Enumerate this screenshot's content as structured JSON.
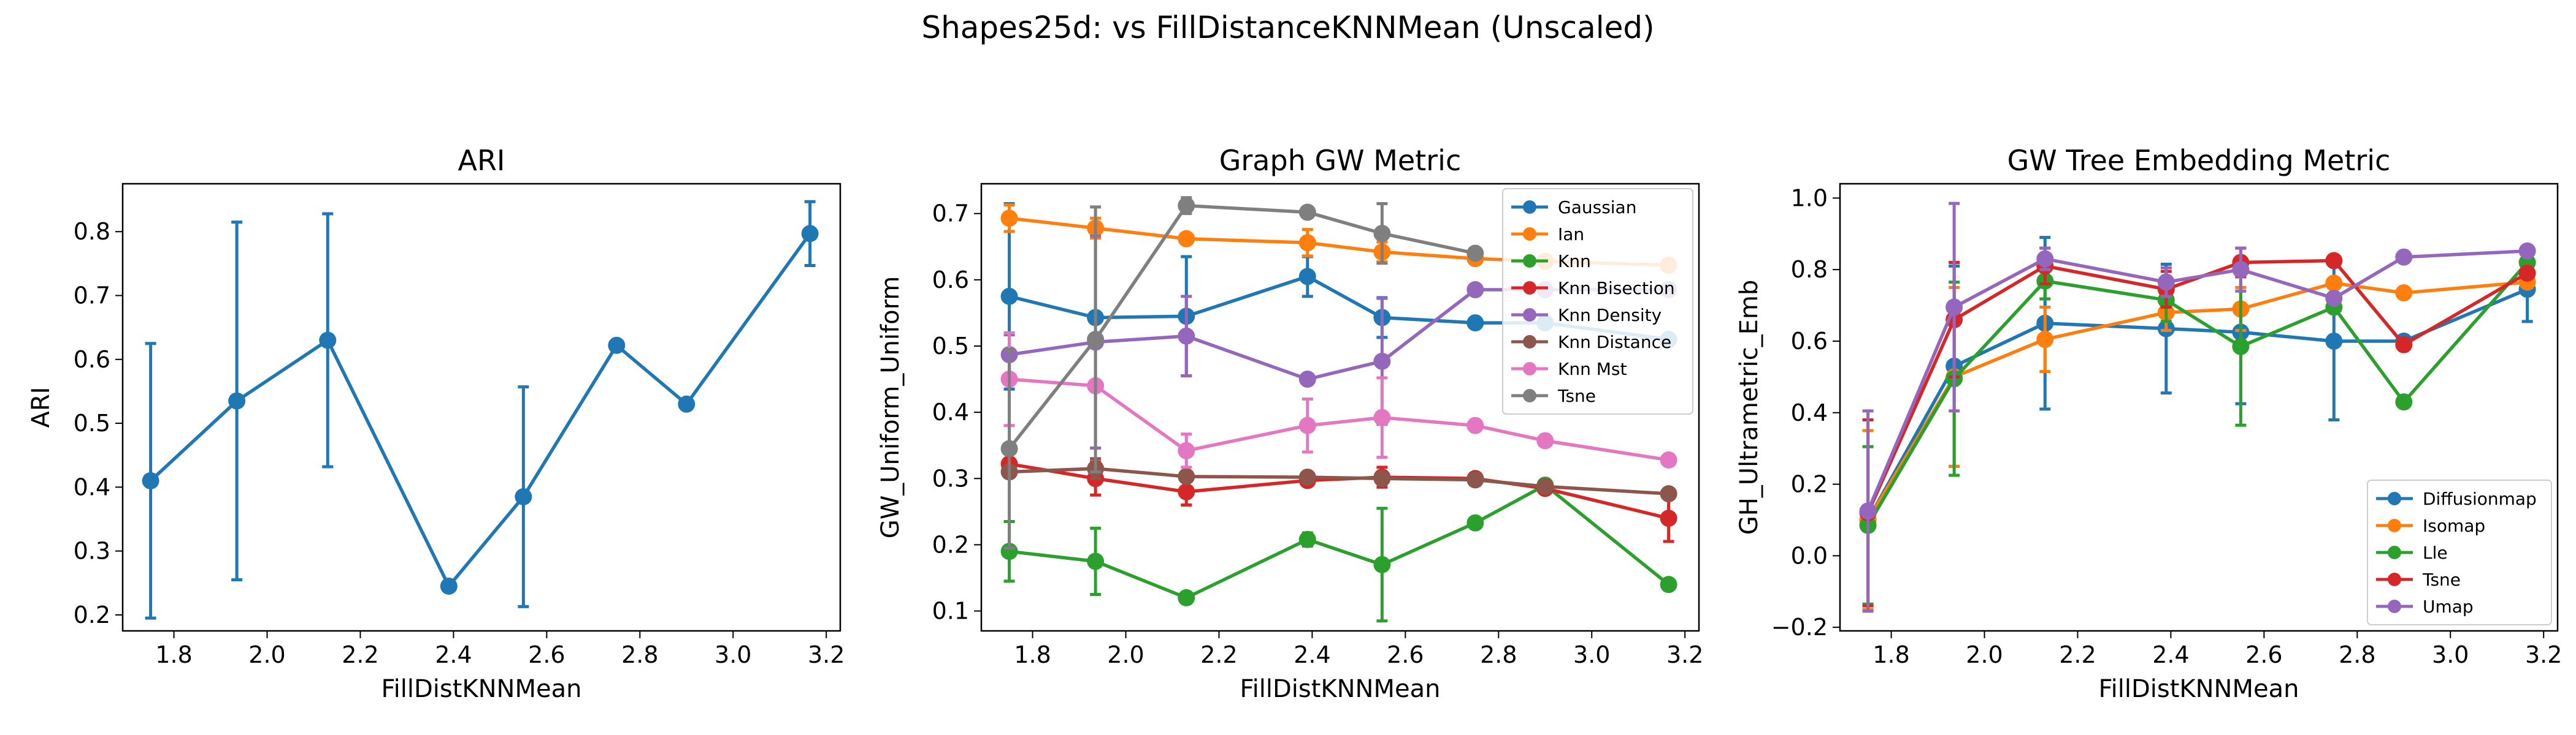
{
  "figure": {
    "suptitle": "Shapes25d: vs FillDistanceKNNMean (Unscaled)"
  },
  "chart_data": [
    {
      "type": "line",
      "title": "ARI",
      "xlabel": "FillDistKNNMean",
      "ylabel": "ARI",
      "xlim": [
        1.69,
        3.23
      ],
      "ylim": [
        0.175,
        0.875
      ],
      "xticks": [
        1.8,
        2.0,
        2.2,
        2.4,
        2.6,
        2.8,
        3.0,
        3.2
      ],
      "xtick_labels": [
        "1.8",
        "2.0",
        "2.2",
        "2.4",
        "2.6",
        "2.8",
        "3.0",
        "3.2"
      ],
      "yticks": [
        0.2,
        0.3,
        0.4,
        0.5,
        0.6,
        0.7,
        0.8
      ],
      "ytick_labels": [
        "0.2",
        "0.3",
        "0.4",
        "0.5",
        "0.6",
        "0.7",
        "0.8"
      ],
      "grid": false,
      "legend": null,
      "x": [
        1.75,
        1.935,
        2.13,
        2.39,
        2.55,
        2.75,
        2.9,
        3.165
      ],
      "series": [
        {
          "color": "#1f77b4",
          "values": [
            0.41,
            0.535,
            0.63,
            0.245,
            0.385,
            0.622,
            0.53,
            0.797
          ],
          "err": [
            0.215,
            0.28,
            0.198,
            0.0,
            0.172,
            0.0,
            0.0,
            0.05
          ]
        }
      ]
    },
    {
      "type": "line",
      "title": "Graph GW Metric",
      "xlabel": "FillDistKNNMean",
      "ylabel": "GW_Uniform_Uniform",
      "xlim": [
        1.69,
        3.23
      ],
      "ylim": [
        0.07,
        0.745
      ],
      "xticks": [
        1.8,
        2.0,
        2.2,
        2.4,
        2.6,
        2.8,
        3.0,
        3.2
      ],
      "xtick_labels": [
        "1.8",
        "2.0",
        "2.2",
        "2.4",
        "2.6",
        "2.8",
        "3.0",
        "3.2"
      ],
      "yticks": [
        0.1,
        0.2,
        0.3,
        0.4,
        0.5,
        0.6,
        0.7
      ],
      "ytick_labels": [
        "0.1",
        "0.2",
        "0.3",
        "0.4",
        "0.5",
        "0.6",
        "0.7"
      ],
      "grid": false,
      "legend": "top-right",
      "x": [
        1.75,
        1.935,
        2.13,
        2.39,
        2.55,
        2.75,
        2.9,
        3.165
      ],
      "series": [
        {
          "name": "Gaussian",
          "color": "#1f77b4",
          "values": [
            0.575,
            0.543,
            0.545,
            0.605,
            0.543,
            0.535,
            0.535,
            0.51
          ],
          "err": [
            0.14,
            0.0,
            0.09,
            0.03,
            0.03,
            0.0,
            0.0,
            0.0
          ]
        },
        {
          "name": "Ian",
          "color": "#ff7f0e",
          "values": [
            0.693,
            0.678,
            0.662,
            0.656,
            0.642,
            0.632,
            0.628,
            0.622
          ],
          "err": [
            0.02,
            0.015,
            0.0,
            0.02,
            0.015,
            0.0,
            0.0,
            0.0
          ]
        },
        {
          "name": "Knn",
          "color": "#2ca02c",
          "values": [
            0.19,
            0.175,
            0.12,
            0.208,
            0.17,
            0.233,
            0.29,
            0.14
          ],
          "err": [
            0.045,
            0.05,
            0.0,
            0.01,
            0.085,
            0.0,
            0.0,
            0.0
          ]
        },
        {
          "name": "Knn Bisection",
          "color": "#d62728",
          "values": [
            0.322,
            0.3,
            0.28,
            0.297,
            0.302,
            0.3,
            0.285,
            0.24
          ],
          "err": [
            0.02,
            0.025,
            0.02,
            0.0,
            0.015,
            0.0,
            0.0,
            0.035
          ]
        },
        {
          "name": "Knn Density",
          "color": "#9467bd",
          "values": [
            0.487,
            0.506,
            0.515,
            0.45,
            0.477,
            0.585,
            0.585,
            0.585
          ],
          "err": [
            0.03,
            0.16,
            0.06,
            0.0,
            0.095,
            0.0,
            0.0,
            0.0
          ]
        },
        {
          "name": "Knn Distance",
          "color": "#8c564b",
          "values": [
            0.31,
            0.315,
            0.303,
            0.302,
            0.3,
            0.298,
            0.288,
            0.277
          ],
          "err": [
            0.0,
            0.015,
            0.0,
            0.0,
            0.0,
            0.0,
            0.0,
            0.0
          ]
        },
        {
          "name": "Knn Mst",
          "color": "#e377c2",
          "values": [
            0.45,
            0.44,
            0.342,
            0.38,
            0.392,
            0.38,
            0.357,
            0.328
          ],
          "err": [
            0.07,
            0.0,
            0.025,
            0.04,
            0.06,
            0.0,
            0.0,
            0.0
          ]
        },
        {
          "name": "Tsne",
          "color": "#7f7f7f",
          "values": [
            0.345,
            0.51,
            0.712,
            0.702,
            0.67,
            0.64,
            null,
            null
          ],
          "err": [
            0.15,
            0.2,
            0.012,
            0.0,
            0.045,
            0.0,
            0.0,
            0.0
          ]
        }
      ]
    },
    {
      "type": "line",
      "title": "GW Tree Embedding Metric",
      "xlabel": "FillDistKNNMean",
      "ylabel": "GH_Ultrametric_Emb",
      "xlim": [
        1.69,
        3.23
      ],
      "ylim": [
        -0.21,
        1.04
      ],
      "xticks": [
        1.8,
        2.0,
        2.2,
        2.4,
        2.6,
        2.8,
        3.0,
        3.2
      ],
      "xtick_labels": [
        "1.8",
        "2.0",
        "2.2",
        "2.4",
        "2.6",
        "2.8",
        "3.0",
        "3.2"
      ],
      "yticks": [
        -0.2,
        0.0,
        0.2,
        0.4,
        0.6,
        0.8,
        1.0
      ],
      "ytick_labels": [
        "−0.2",
        "0.0",
        "0.2",
        "0.4",
        "0.6",
        "0.8",
        "1.0"
      ],
      "grid": false,
      "legend": "bottom-right",
      "x": [
        1.75,
        1.935,
        2.13,
        2.39,
        2.55,
        2.75,
        2.9,
        3.165
      ],
      "series": [
        {
          "name": "Diffusionmap",
          "color": "#1f77b4",
          "values": [
            0.1,
            0.53,
            0.65,
            0.635,
            0.625,
            0.6,
            0.6,
            0.745
          ],
          "err": [
            0.25,
            0.28,
            0.24,
            0.18,
            0.2,
            0.22,
            0.0,
            0.09
          ]
        },
        {
          "name": "Isomap",
          "color": "#ff7f0e",
          "values": [
            0.1,
            0.5,
            0.605,
            0.68,
            0.69,
            0.762,
            0.735,
            0.765
          ],
          "err": [
            0.25,
            0.25,
            0.09,
            0.05,
            0.06,
            0.0,
            0.0,
            0.0
          ]
        },
        {
          "name": "Lle",
          "color": "#2ca02c",
          "values": [
            0.085,
            0.495,
            0.768,
            0.715,
            0.585,
            0.695,
            0.43,
            0.82
          ],
          "err": [
            0.22,
            0.27,
            0.05,
            0.06,
            0.22,
            0.0,
            0.0,
            0.0
          ]
        },
        {
          "name": "Tsne",
          "color": "#d62728",
          "values": [
            0.12,
            0.66,
            0.81,
            0.745,
            0.82,
            0.825,
            0.59,
            0.79
          ],
          "err": [
            0.26,
            0.16,
            0.05,
            0.05,
            0.04,
            0.0,
            0.0,
            0.0
          ]
        },
        {
          "name": "Umap",
          "color": "#9467bd",
          "values": [
            0.125,
            0.695,
            0.83,
            0.765,
            0.8,
            0.72,
            0.835,
            0.852
          ],
          "err": [
            0.28,
            0.29,
            0.03,
            0.04,
            0.06,
            0.0,
            0.0,
            0.01
          ]
        }
      ]
    }
  ]
}
